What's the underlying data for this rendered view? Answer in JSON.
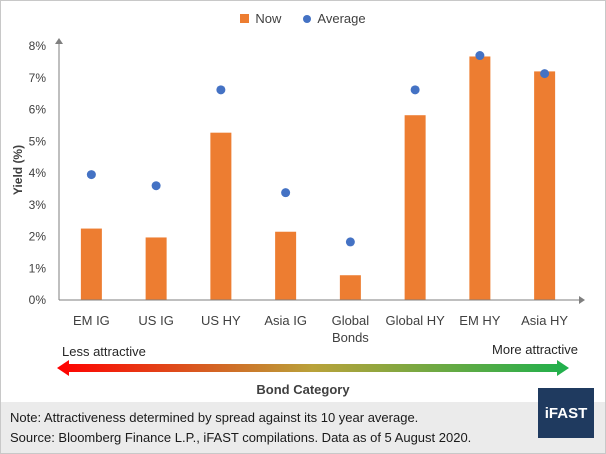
{
  "legend": {
    "now": "Now",
    "average": "Average"
  },
  "y_axis_title": "Yield (%)",
  "x_axis_title": "Bond Category",
  "scale": {
    "left": "Less attractive",
    "right": "More attractive"
  },
  "footer": {
    "note": "Note: Attractiveness determined by spread against its 10 year average.",
    "source": "Source: Bloomberg Finance L.P., iFAST compilations. Data as of 5 August 2020."
  },
  "logo": "iFAST",
  "colors": {
    "now": "#ed7d31",
    "average": "#4472c4"
  },
  "chart_data": {
    "type": "bar",
    "categories": [
      [
        "EM IG"
      ],
      [
        "US IG"
      ],
      [
        "US HY"
      ],
      [
        "Asia IG"
      ],
      [
        "Global",
        "Bonds"
      ],
      [
        "Global HY"
      ],
      [
        "EM HY"
      ],
      [
        "Asia HY"
      ]
    ],
    "series": [
      {
        "name": "Now",
        "type": "bar",
        "values": [
          2.25,
          1.97,
          5.27,
          2.15,
          0.78,
          5.82,
          7.67,
          7.2
        ]
      },
      {
        "name": "Average",
        "type": "scatter",
        "values": [
          3.95,
          3.6,
          6.62,
          3.38,
          1.83,
          6.62,
          7.7,
          7.13
        ]
      }
    ],
    "ylim": [
      0,
      8
    ],
    "yticks": [
      "0%",
      "1%",
      "2%",
      "3%",
      "4%",
      "5%",
      "6%",
      "7%",
      "8%"
    ],
    "xlabel": "Bond Category",
    "ylabel": "Yield (%)",
    "legend_position": "top"
  }
}
